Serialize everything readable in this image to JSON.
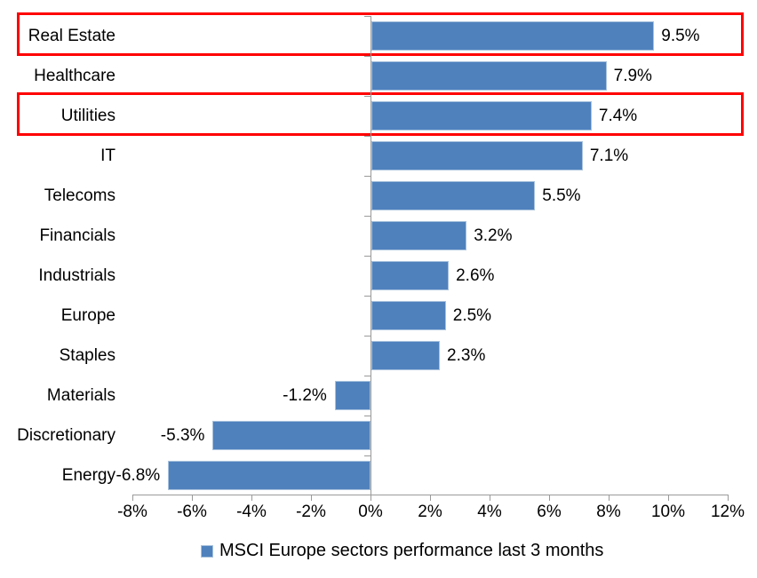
{
  "chart_data": {
    "type": "bar",
    "orientation": "horizontal",
    "title": "",
    "xlabel": "",
    "ylabel": "",
    "categories": [
      "Real Estate",
      "Healthcare",
      "Utilities",
      "IT",
      "Telecoms",
      "Financials",
      "Industrials",
      "Europe",
      "Staples",
      "Materials",
      "Discretionary",
      "Energy"
    ],
    "values": [
      9.5,
      7.9,
      7.4,
      7.1,
      5.5,
      3.2,
      2.6,
      2.5,
      2.3,
      -1.2,
      -5.3,
      -6.8
    ],
    "value_labels": [
      "9.5%",
      "7.9%",
      "7.4%",
      "7.1%",
      "5.5%",
      "3.2%",
      "2.6%",
      "2.5%",
      "2.3%",
      "-1.2%",
      "-5.3%",
      "-6.8%"
    ],
    "series_name": "MSCI Europe sectors performance last 3 months",
    "xlim": [
      -8,
      12
    ],
    "x_tick_values": [
      -8,
      -6,
      -4,
      -2,
      0,
      2,
      4,
      6,
      8,
      10,
      12
    ],
    "x_tick_labels": [
      "-8%",
      "-6%",
      "-4%",
      "-2%",
      "0%",
      "2%",
      "4%",
      "6%",
      "8%",
      "10%",
      "12%"
    ],
    "grid": false,
    "legend_position": "bottom",
    "bar_color": "#4f81bd",
    "bar_edge_color": "#a8c2dd",
    "axis_color": "#9a9a9a",
    "text_color": "#000000",
    "highlight_color": "#ff0000",
    "highlighted_categories": [
      "Real Estate",
      "Utilities"
    ]
  },
  "legend": {
    "label": "MSCI Europe sectors performance last 3 months"
  }
}
